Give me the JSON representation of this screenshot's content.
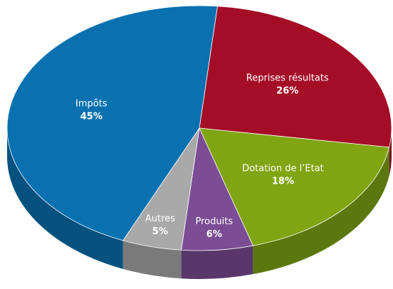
{
  "chart_data": {
    "type": "pie",
    "categories": [
      "Reprises résultats",
      "Dotation de l’Etat",
      "Produits",
      "Autres",
      "Impôts"
    ],
    "values": [
      26,
      18,
      6,
      5,
      45
    ],
    "value_labels": [
      "26%",
      "18%",
      "6%",
      "5%",
      "45%"
    ],
    "colors": [
      "#a50d26",
      "#7fa512",
      "#7b4d94",
      "#a9a9a9",
      "#0a71b0"
    ]
  }
}
